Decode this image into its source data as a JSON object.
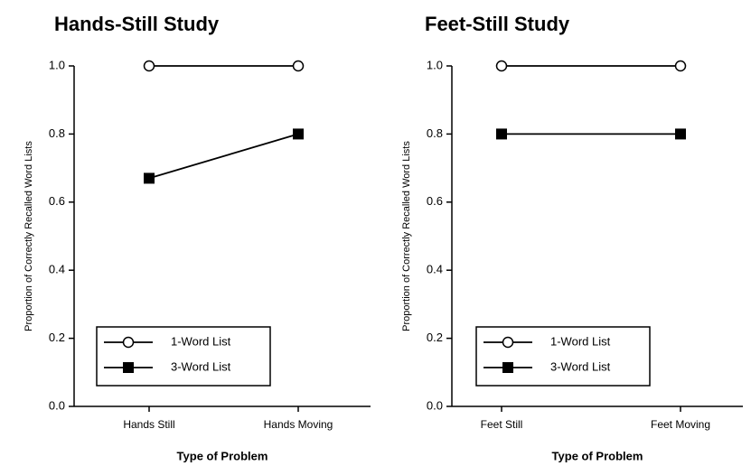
{
  "chart_data": [
    {
      "type": "line",
      "title": "Hands-Still Study",
      "x_label": "Type of Problem",
      "y_label": "Proportion of Correctly Recalled Word Lists",
      "categories": [
        "Hands Still",
        "Hands Moving"
      ],
      "series": [
        {
          "name": "1-Word List",
          "color": "#000000",
          "marker": "open-circle",
          "values": [
            1.0,
            1.0
          ]
        },
        {
          "name": "3-Word List",
          "color": "#000000",
          "marker": "filled-square",
          "values": [
            0.67,
            0.8
          ]
        }
      ],
      "ylim": [
        0,
        1
      ],
      "yticks": [
        {
          "value": 0,
          "label": "0.0"
        },
        0.2,
        0.4,
        0.6,
        0.8,
        {
          "value": 1,
          "label": "1.0"
        }
      ],
      "legend": "lower left"
    },
    {
      "type": "line",
      "title": "Feet-Still Study",
      "x_label": "Type of Problem",
      "y_label": "Proportion of Correctly Recalled Word Lists",
      "categories": [
        "Feet Still",
        "Feet Moving"
      ],
      "series": [
        {
          "name": "1-Word List",
          "color": "#000000",
          "marker": "open-circle",
          "values": [
            1.0,
            1.0
          ]
        },
        {
          "name": "3-Word List",
          "color": "#000000",
          "marker": "filled-square",
          "values": [
            0.8,
            0.8
          ]
        }
      ],
      "ylim": [
        0,
        1
      ],
      "yticks": [
        {
          "value": 0,
          "label": "0.0"
        },
        0.2,
        0.4,
        0.6,
        0.8,
        {
          "value": 1,
          "label": "1.0"
        }
      ],
      "legend": "lower left"
    }
  ]
}
